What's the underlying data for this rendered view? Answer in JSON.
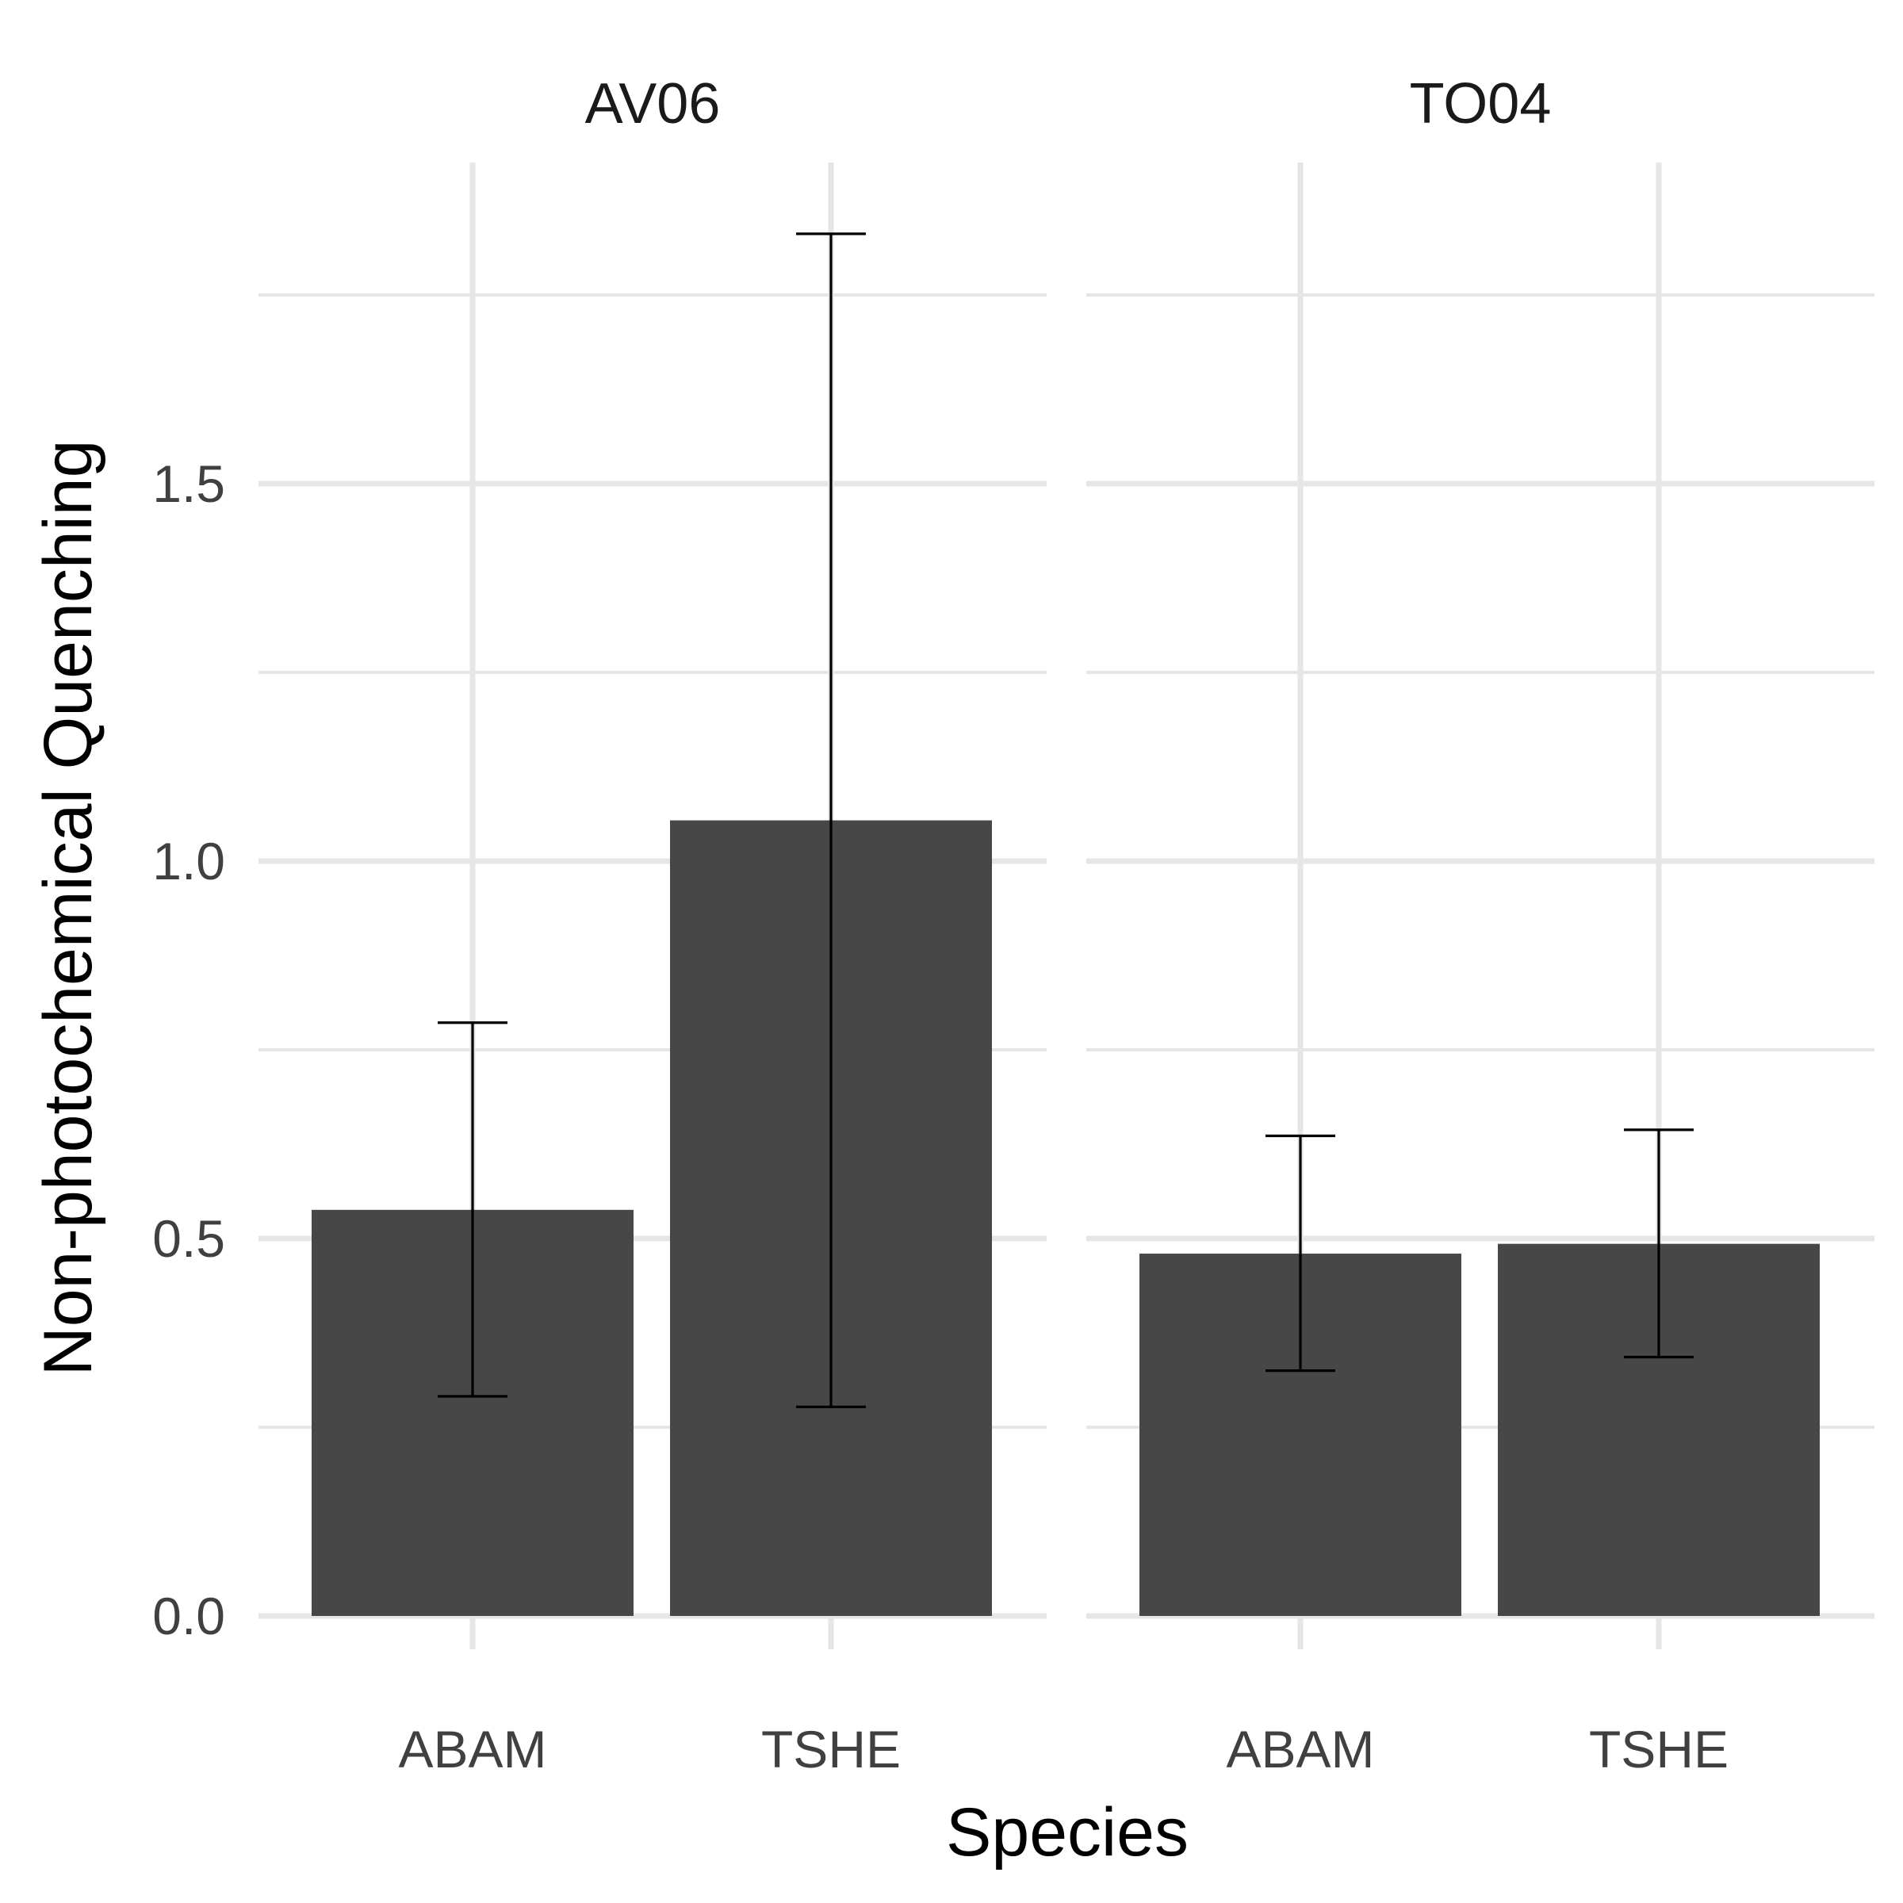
{
  "chart_data": {
    "type": "bar",
    "title": "",
    "xlabel": "Species",
    "ylabel": "Non-photochemical Quenching",
    "ylim": [
      0,
      1.85
    ],
    "y_ticks": [
      0.0,
      0.5,
      1.0,
      1.5
    ],
    "y_tick_labels": [
      "0.0",
      "0.5",
      "1.0",
      "1.5"
    ],
    "grid": true,
    "legend": "none",
    "bar_color": "#474747",
    "panels": [
      {
        "label": "AV06",
        "categories": [
          "ABAM",
          "TSHE"
        ],
        "values": [
          0.538,
          1.054
        ],
        "error_low": [
          0.291,
          0.277
        ],
        "error_high": [
          0.786,
          1.831
        ]
      },
      {
        "label": "TO04",
        "categories": [
          "ABAM",
          "TSHE"
        ],
        "values": [
          0.48,
          0.493
        ],
        "error_low": [
          0.325,
          0.343
        ],
        "error_high": [
          0.636,
          0.644
        ]
      }
    ]
  }
}
